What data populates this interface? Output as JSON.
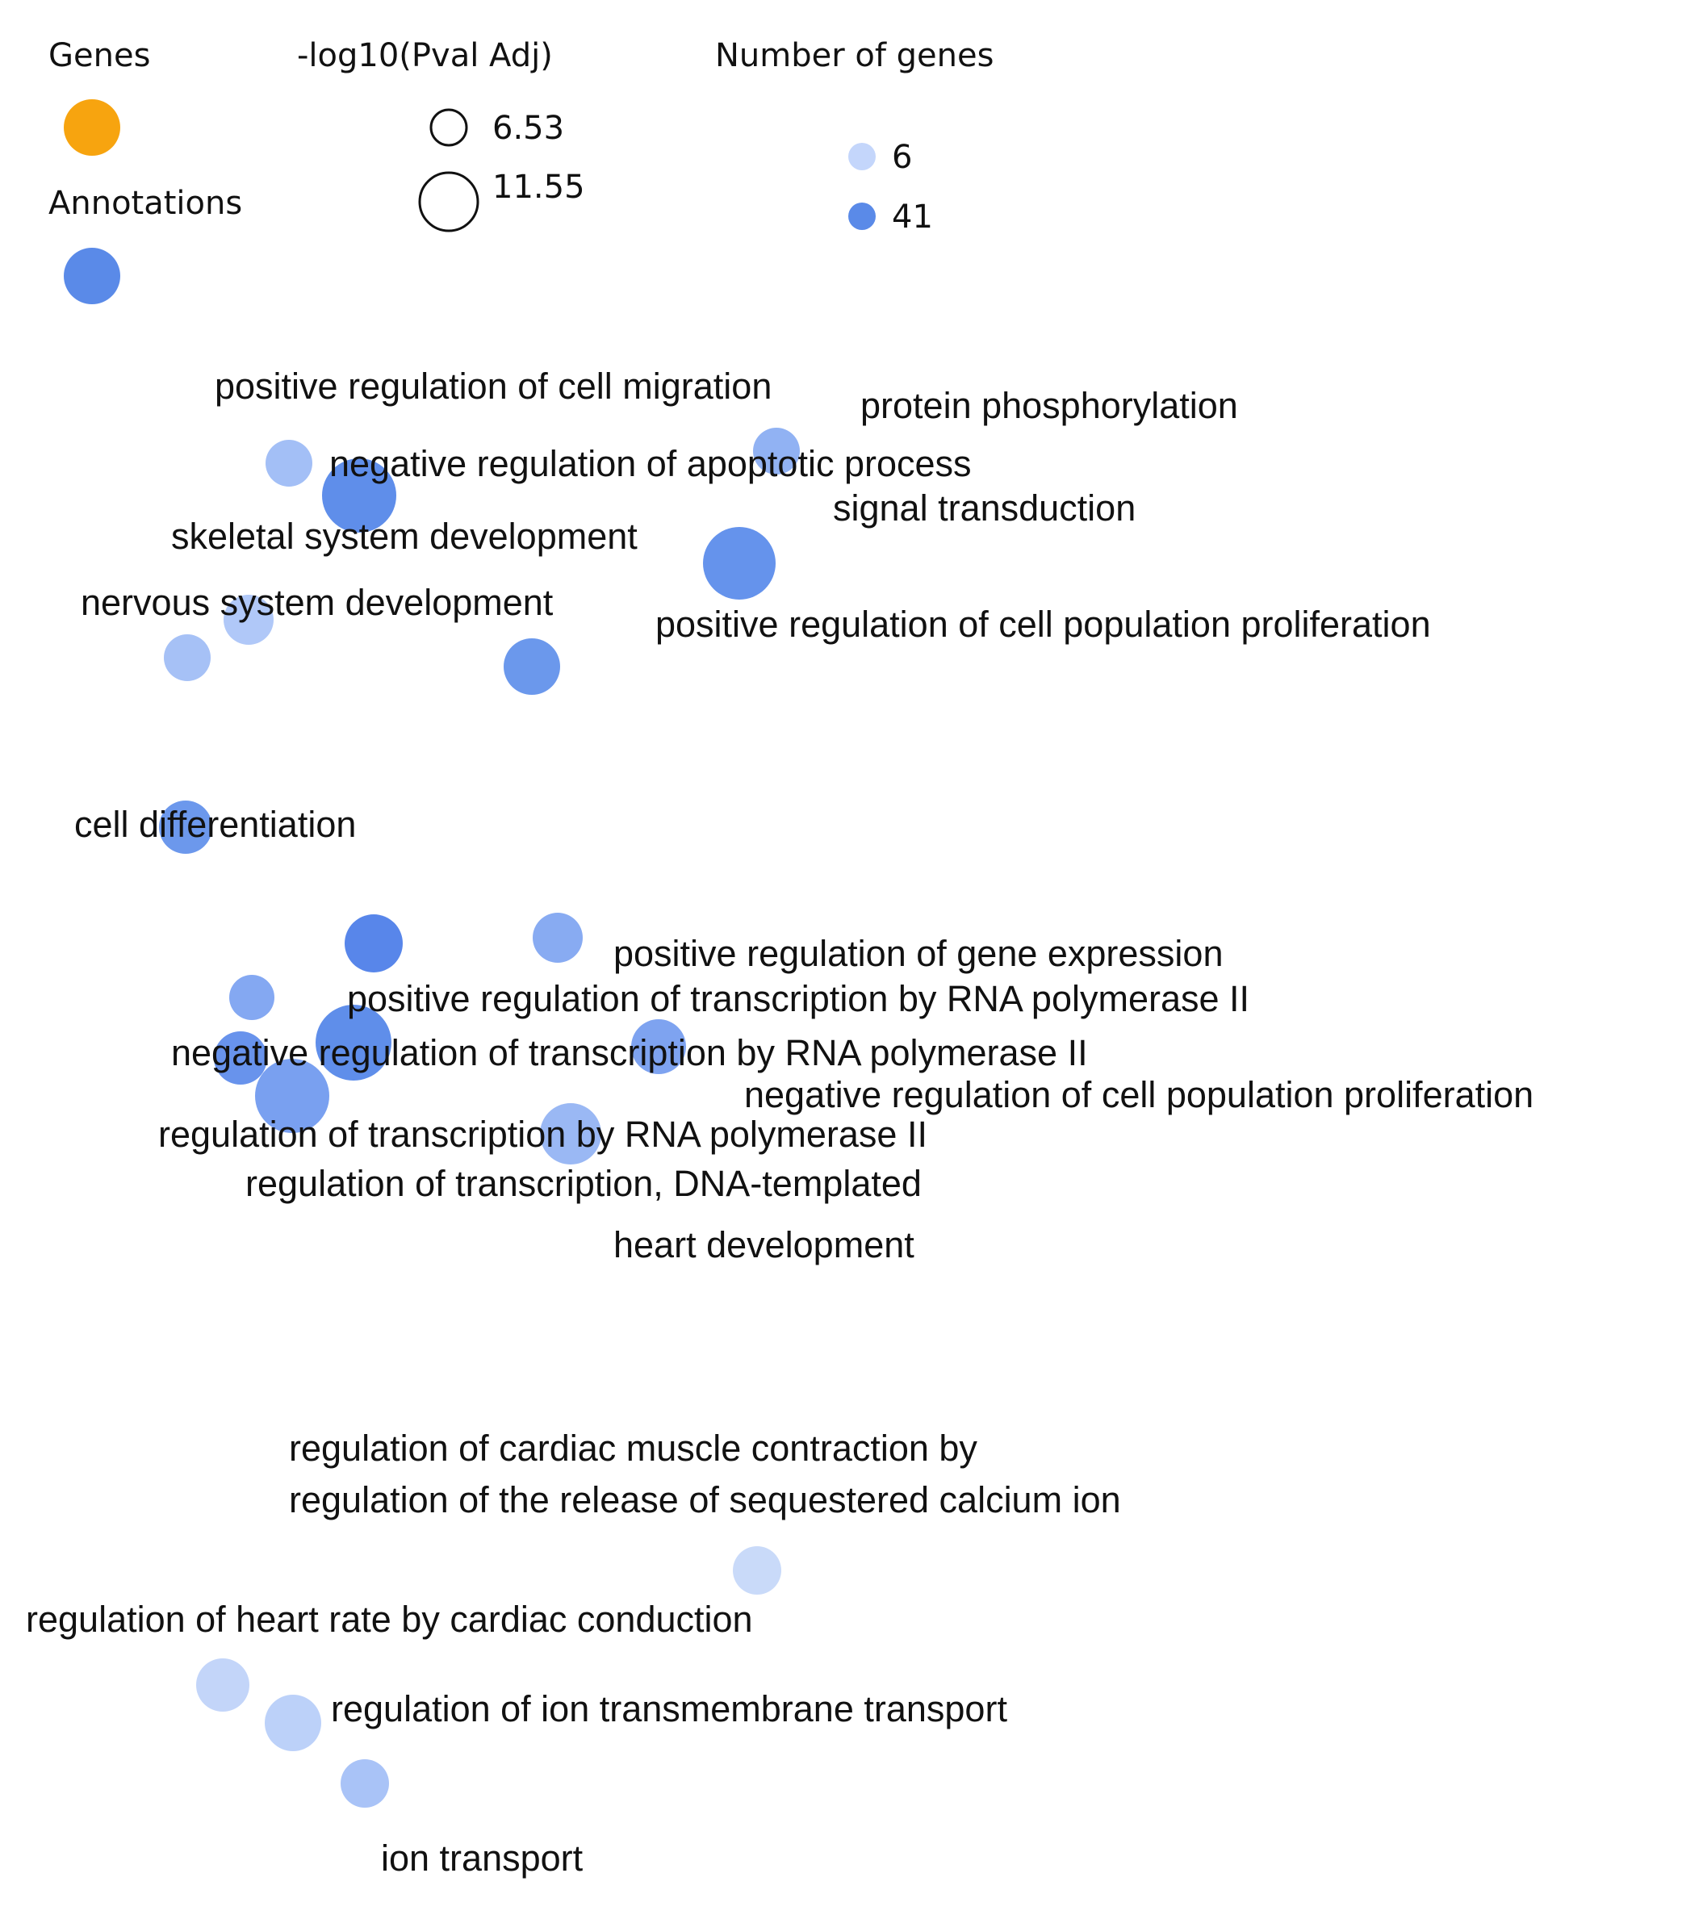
{
  "legend": {
    "genes_title": "Genes",
    "annotations_title": "Annotations",
    "pval_title": "-log10(Pval Adj)",
    "pval_small": "6.53",
    "pval_large": "11.55",
    "count_title": "Number of genes",
    "count_small": "6",
    "count_large": "41",
    "gene_color": "#f7a40f",
    "annotation_color": "#5a8ae8",
    "count_small_color": "#c4d6fb",
    "count_large_color": "#5a8ae8"
  },
  "nodes": [
    {
      "id": "n1",
      "color": "#a3bff6"
    },
    {
      "id": "n2",
      "color": "#91b2f3"
    },
    {
      "id": "n3",
      "color": "#5f8eea"
    },
    {
      "id": "n4",
      "color": "#6593ec"
    },
    {
      "id": "n5",
      "color": "#b0c8f8"
    },
    {
      "id": "n6",
      "color": "#a6c1f6"
    },
    {
      "id": "n7",
      "color": "#6b98ec"
    },
    {
      "id": "n8",
      "color": "#6c98ec"
    },
    {
      "id": "n9",
      "color": "#5886ea"
    },
    {
      "id": "n10",
      "color": "#88abf2"
    },
    {
      "id": "n11",
      "color": "#84a8f2"
    },
    {
      "id": "n12",
      "color": "#5f8eea"
    },
    {
      "id": "n13",
      "color": "#6893ec"
    },
    {
      "id": "n14",
      "color": "#7ea3f0"
    },
    {
      "id": "n15",
      "color": "#79a0f0"
    },
    {
      "id": "n16",
      "color": "#9ab8f4"
    },
    {
      "id": "n17",
      "color": "#c9daf9"
    },
    {
      "id": "n18",
      "color": "#c3d5f9"
    },
    {
      "id": "n19",
      "color": "#bcd1f9"
    },
    {
      "id": "n20",
      "color": "#a9c3f7"
    }
  ],
  "labels": {
    "l1": "positive regulation of cell migration",
    "l2": "protein phosphorylation",
    "l3": "negative regulation of apoptotic process",
    "l4": "signal transduction",
    "l5": "skeletal system development",
    "l6": "nervous system development",
    "l7": "positive regulation of cell population proliferation",
    "l8": "cell differentiation",
    "l9": "positive regulation of gene expression",
    "l10": "positive regulation of transcription by RNA polymerase II",
    "l11": "negative regulation of transcription by RNA polymerase II",
    "l12": "negative regulation of cell population proliferation",
    "l13": "regulation of transcription by RNA polymerase II",
    "l14": "regulation of transcription, DNA-templated",
    "l15": "heart development",
    "l16a": "regulation of cardiac muscle contraction by",
    "l16b": "regulation of the release of sequestered calcium ion",
    "l17": "regulation of heart rate by cardiac conduction",
    "l18": "regulation of ion transmembrane transport",
    "l19": "ion transport"
  }
}
